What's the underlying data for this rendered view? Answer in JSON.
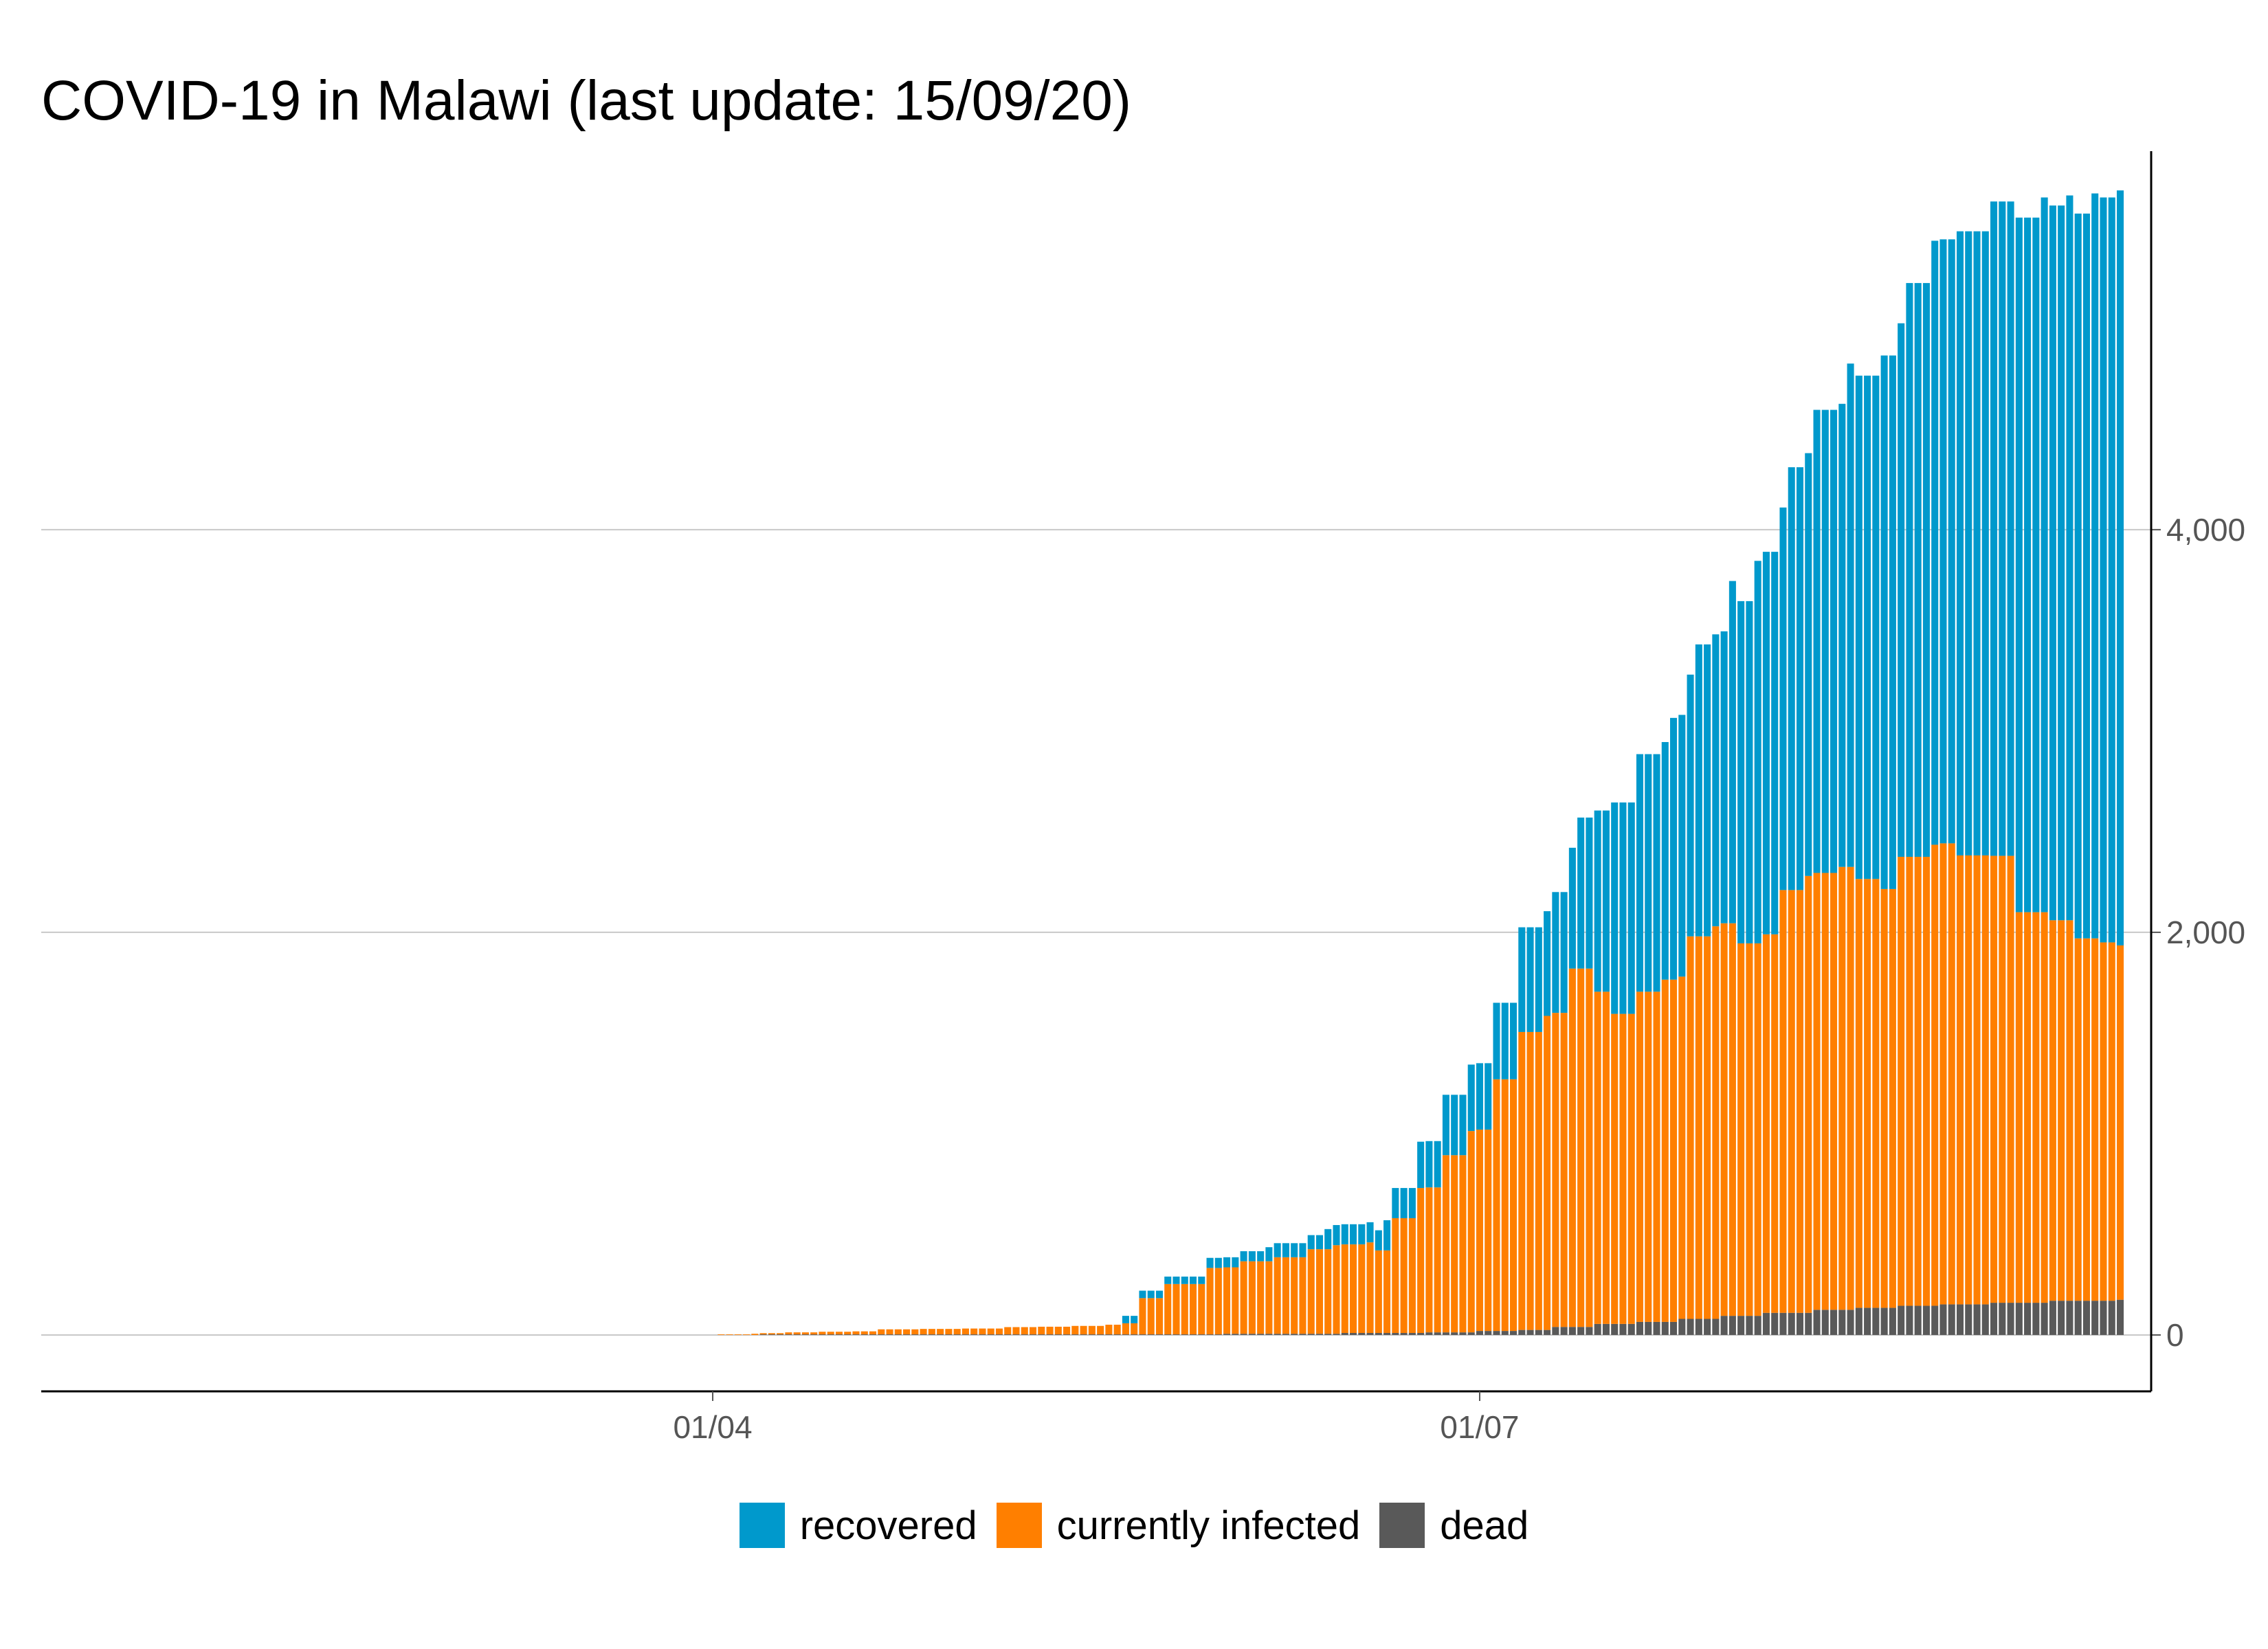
{
  "chart_data": {
    "type": "bar",
    "stacked": true,
    "title": "COVID-19 in Malawi (last update: 15/09/20)",
    "xlabel": "",
    "ylabel": "",
    "x_start": "2020-01-16",
    "x_end": "2020-09-15",
    "x_ticks": [
      {
        "date": "2020-04-01",
        "label": "01/04"
      },
      {
        "date": "2020-07-01",
        "label": "01/07"
      }
    ],
    "y_axis_side": "right",
    "ylim": [
      -280,
      5880
    ],
    "y_ticks": [
      {
        "value": 0,
        "label": "0"
      },
      {
        "value": 2000,
        "label": "2,000"
      },
      {
        "value": 4000,
        "label": "4,000"
      }
    ],
    "grid": "horizontal",
    "legend_position": "bottom",
    "series_order_bottom_to_top": [
      "dead",
      "currently infected",
      "recovered"
    ],
    "series": [
      {
        "name": "recovered",
        "color": "#0099CC",
        "points": [
          {
            "date": "2020-05-20",
            "value": 37
          },
          {
            "date": "2020-05-30",
            "value": 50
          },
          {
            "date": "2020-06-06",
            "value": 70
          },
          {
            "date": "2020-06-13",
            "value": 100
          },
          {
            "date": "2020-06-20",
            "value": 150
          },
          {
            "date": "2020-06-24",
            "value": 230
          },
          {
            "date": "2020-06-27",
            "value": 300
          },
          {
            "date": "2020-06-30",
            "value": 330
          },
          {
            "date": "2020-07-03",
            "value": 380
          },
          {
            "date": "2020-07-06",
            "value": 520
          },
          {
            "date": "2020-07-10",
            "value": 600
          },
          {
            "date": "2020-07-13",
            "value": 750
          },
          {
            "date": "2020-07-15",
            "value": 900
          },
          {
            "date": "2020-07-17",
            "value": 1050
          },
          {
            "date": "2020-07-20",
            "value": 1180
          },
          {
            "date": "2020-07-24",
            "value": 1300
          },
          {
            "date": "2020-07-27",
            "value": 1450
          },
          {
            "date": "2020-07-31",
            "value": 1700
          },
          {
            "date": "2020-08-03",
            "value": 1900
          },
          {
            "date": "2020-08-07",
            "value": 2100
          },
          {
            "date": "2020-08-10",
            "value": 2300
          },
          {
            "date": "2020-08-14",
            "value": 2500
          },
          {
            "date": "2020-08-18",
            "value": 2650
          },
          {
            "date": "2020-08-21",
            "value": 2850
          },
          {
            "date": "2020-08-24",
            "value": 3000
          },
          {
            "date": "2020-08-27",
            "value": 3100
          },
          {
            "date": "2020-08-31",
            "value": 3250
          },
          {
            "date": "2020-09-03",
            "value": 3450
          },
          {
            "date": "2020-09-06",
            "value": 3550
          },
          {
            "date": "2020-09-09",
            "value": 3600
          },
          {
            "date": "2020-09-12",
            "value": 3700
          },
          {
            "date": "2020-09-15",
            "value": 3750
          }
        ]
      },
      {
        "name": "currently infected",
        "color": "#FF7F00",
        "points": [
          {
            "date": "2020-04-02",
            "value": 3
          },
          {
            "date": "2020-04-06",
            "value": 6
          },
          {
            "date": "2020-04-10",
            "value": 10
          },
          {
            "date": "2020-04-14",
            "value": 13
          },
          {
            "date": "2020-04-18",
            "value": 15
          },
          {
            "date": "2020-04-21",
            "value": 25
          },
          {
            "date": "2020-04-26",
            "value": 27
          },
          {
            "date": "2020-05-01",
            "value": 29
          },
          {
            "date": "2020-05-06",
            "value": 36
          },
          {
            "date": "2020-05-10",
            "value": 38
          },
          {
            "date": "2020-05-14",
            "value": 42
          },
          {
            "date": "2020-05-18",
            "value": 48
          },
          {
            "date": "2020-05-20",
            "value": 55
          },
          {
            "date": "2020-05-22",
            "value": 180
          },
          {
            "date": "2020-05-25",
            "value": 250
          },
          {
            "date": "2020-05-30",
            "value": 330
          },
          {
            "date": "2020-06-03",
            "value": 360
          },
          {
            "date": "2020-06-07",
            "value": 380
          },
          {
            "date": "2020-06-11",
            "value": 420
          },
          {
            "date": "2020-06-14",
            "value": 440
          },
          {
            "date": "2020-06-16",
            "value": 440
          },
          {
            "date": "2020-06-18",
            "value": 450
          },
          {
            "date": "2020-06-19",
            "value": 410
          },
          {
            "date": "2020-06-21",
            "value": 570
          },
          {
            "date": "2020-06-24",
            "value": 720
          },
          {
            "date": "2020-06-27",
            "value": 880
          },
          {
            "date": "2020-06-30",
            "value": 1000
          },
          {
            "date": "2020-07-03",
            "value": 1250
          },
          {
            "date": "2020-07-06",
            "value": 1480
          },
          {
            "date": "2020-07-09",
            "value": 1560
          },
          {
            "date": "2020-07-12",
            "value": 1780
          },
          {
            "date": "2020-07-15",
            "value": 1650
          },
          {
            "date": "2020-07-17",
            "value": 1540
          },
          {
            "date": "2020-07-20",
            "value": 1640
          },
          {
            "date": "2020-07-23",
            "value": 1700
          },
          {
            "date": "2020-07-26",
            "value": 1900
          },
          {
            "date": "2020-07-29",
            "value": 1950
          },
          {
            "date": "2020-08-01",
            "value": 1850
          },
          {
            "date": "2020-08-04",
            "value": 1880
          },
          {
            "date": "2020-08-06",
            "value": 2100
          },
          {
            "date": "2020-08-09",
            "value": 2170
          },
          {
            "date": "2020-08-13",
            "value": 2200
          },
          {
            "date": "2020-08-15",
            "value": 2130
          },
          {
            "date": "2020-08-18",
            "value": 2080
          },
          {
            "date": "2020-08-20",
            "value": 2230
          },
          {
            "date": "2020-08-24",
            "value": 2290
          },
          {
            "date": "2020-08-27",
            "value": 2230
          },
          {
            "date": "2020-08-31",
            "value": 2220
          },
          {
            "date": "2020-09-03",
            "value": 1940
          },
          {
            "date": "2020-09-07",
            "value": 1890
          },
          {
            "date": "2020-09-10",
            "value": 1800
          },
          {
            "date": "2020-09-13",
            "value": 1780
          },
          {
            "date": "2020-09-15",
            "value": 1760
          }
        ]
      },
      {
        "name": "dead",
        "color": "#595959",
        "points": [
          {
            "date": "2020-04-07",
            "value": 3
          },
          {
            "date": "2020-06-01",
            "value": 6
          },
          {
            "date": "2020-06-15",
            "value": 10
          },
          {
            "date": "2020-06-25",
            "value": 13
          },
          {
            "date": "2020-07-01",
            "value": 20
          },
          {
            "date": "2020-07-06",
            "value": 25
          },
          {
            "date": "2020-07-10",
            "value": 40
          },
          {
            "date": "2020-07-15",
            "value": 55
          },
          {
            "date": "2020-07-20",
            "value": 65
          },
          {
            "date": "2020-07-25",
            "value": 80
          },
          {
            "date": "2020-07-30",
            "value": 95
          },
          {
            "date": "2020-08-04",
            "value": 110
          },
          {
            "date": "2020-08-10",
            "value": 125
          },
          {
            "date": "2020-08-15",
            "value": 135
          },
          {
            "date": "2020-08-20",
            "value": 145
          },
          {
            "date": "2020-08-25",
            "value": 152
          },
          {
            "date": "2020-08-31",
            "value": 160
          },
          {
            "date": "2020-09-07",
            "value": 170
          },
          {
            "date": "2020-09-15",
            "value": 175
          }
        ]
      }
    ]
  }
}
